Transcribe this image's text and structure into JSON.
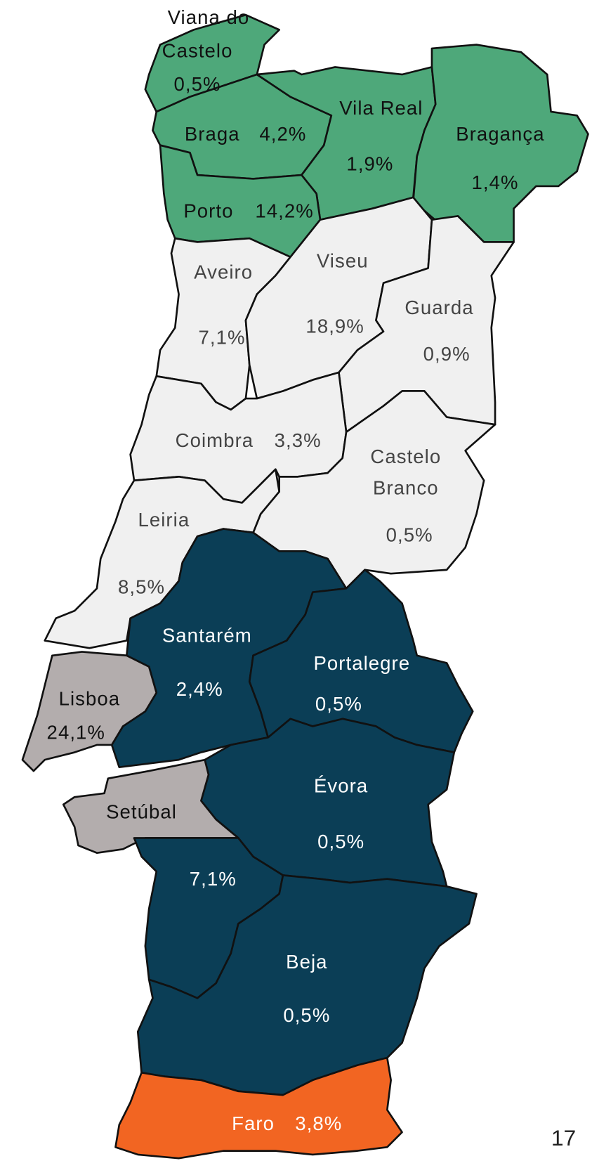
{
  "districts": [
    {
      "name": [
        "Viana do",
        "Castelo"
      ],
      "value": "0,5%"
    },
    {
      "name": "Braga",
      "value": "4,2%"
    },
    {
      "name": "Vila Real",
      "value": "1,9%"
    },
    {
      "name": "Bragança",
      "value": "1,4%"
    },
    {
      "name": "Porto",
      "value": "14,2%"
    },
    {
      "name": "Aveiro",
      "value": "7,1%"
    },
    {
      "name": "Viseu",
      "value": "18,9%"
    },
    {
      "name": "Guarda",
      "value": "0,9%"
    },
    {
      "name": "Coimbra",
      "value": "3,3%"
    },
    {
      "name": [
        "Castelo",
        "Branco"
      ],
      "value": "0,5%"
    },
    {
      "name": "Leiria",
      "value": "8,5%"
    },
    {
      "name": "Santarém",
      "value": "2,4%"
    },
    {
      "name": "Portalegre",
      "value": "0,5%"
    },
    {
      "name": "Lisboa",
      "value": "24,1%"
    },
    {
      "name": "Évora",
      "value": "0,5%"
    },
    {
      "name": "Setúbal",
      "value": "7,1%"
    },
    {
      "name": "Beja",
      "value": "0,5%"
    },
    {
      "name": "Faro",
      "value": "3,8%"
    }
  ],
  "page_number": "17"
}
